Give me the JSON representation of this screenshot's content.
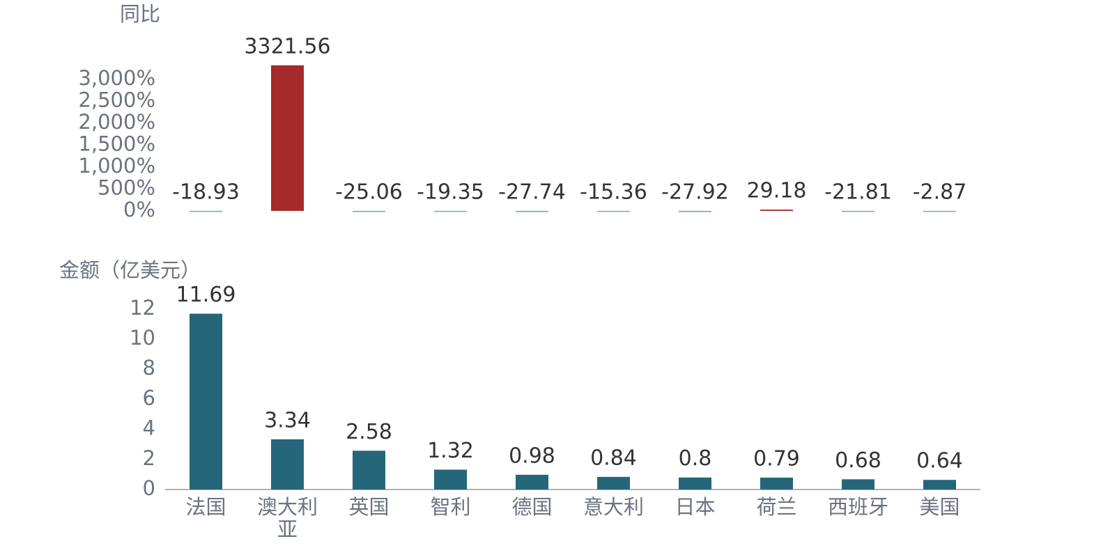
{
  "chart_data": [
    {
      "type": "bar",
      "y_label": "同比",
      "values": [
        -18.93,
        3321.56,
        -25.06,
        -19.35,
        -27.74,
        -15.36,
        -27.92,
        29.18,
        -21.81,
        -2.87
      ],
      "positive_color": "#a52a2a",
      "negative_color": "#7f9fcf",
      "ylim": [
        -50,
        3350
      ],
      "yticks": [
        {
          "value": 0,
          "label": "0%"
        },
        {
          "value": 500,
          "label": "500%"
        },
        {
          "value": 1000,
          "label": "1,000%"
        },
        {
          "value": 1500,
          "label": "1,500%"
        },
        {
          "value": 2000,
          "label": "2,000%"
        },
        {
          "value": 2500,
          "label": "2,500%"
        },
        {
          "value": 3000,
          "label": "3,000%"
        }
      ]
    },
    {
      "type": "bar",
      "y_label": "金额（亿美元）",
      "categories": [
        "法国",
        "澳大利亚",
        "英国",
        "智利",
        "德国",
        "意大利",
        "日本",
        "荷兰",
        "西班牙",
        "美国"
      ],
      "values": [
        11.69,
        3.34,
        2.58,
        1.32,
        0.98,
        0.84,
        0.8,
        0.79,
        0.68,
        0.64
      ],
      "color": "#26667a",
      "ylim": [
        0,
        12.5
      ],
      "yticks": [
        0,
        2,
        4,
        6,
        8,
        10,
        12
      ]
    }
  ]
}
